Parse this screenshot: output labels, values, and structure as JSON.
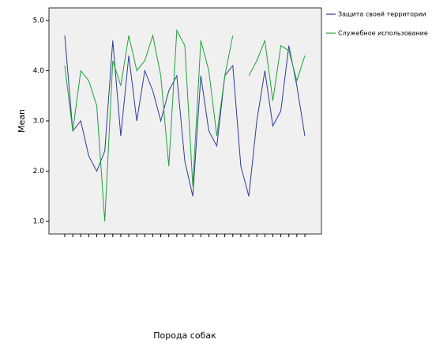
{
  "chart_data": {
    "type": "line",
    "y_label": "Mean",
    "x_label": "Порода собак",
    "categories": [
      null,
      null,
      null,
      null,
      null,
      null,
      null,
      null,
      null,
      null,
      null,
      null,
      null,
      null,
      null,
      null,
      null,
      null,
      null,
      null,
      null,
      null,
      null,
      null,
      null,
      null,
      null,
      null,
      null,
      null,
      null
    ],
    "series": [
      {
        "name": "Защита своей территории",
        "color": "#2e3c96",
        "values": [
          4.7,
          2.8,
          3.0,
          2.3,
          2.0,
          2.4,
          4.6,
          2.7,
          4.3,
          3.0,
          4.0,
          3.6,
          3.0,
          3.6,
          3.9,
          2.2,
          1.5,
          3.9,
          2.8,
          2.5,
          3.9,
          4.1,
          2.1,
          1.5,
          3.0,
          4.0,
          2.9,
          3.2,
          4.5,
          3.7,
          2.7
        ]
      },
      {
        "name": "Служебное использование",
        "color": "#22a03a",
        "values": [
          4.1,
          2.8,
          4.0,
          3.8,
          3.3,
          1.0,
          4.2,
          3.7,
          4.7,
          4.0,
          4.2,
          4.7,
          3.9,
          2.1,
          4.8,
          4.5,
          1.7,
          4.6,
          4.0,
          2.7,
          3.9,
          4.7,
          null,
          3.9,
          4.2,
          4.6,
          3.4,
          4.5,
          4.4,
          3.8,
          4.3
        ]
      }
    ],
    "ylim": [
      0.75,
      5.25
    ],
    "yticks": [
      {
        "value": 1,
        "label": "1.0"
      },
      {
        "value": 2,
        "label": "2.0"
      },
      {
        "value": 3,
        "label": "3.0"
      },
      {
        "value": 4,
        "label": "4.0"
      },
      {
        "value": 5,
        "label": "5.0"
      }
    ],
    "legend": "top-right"
  }
}
